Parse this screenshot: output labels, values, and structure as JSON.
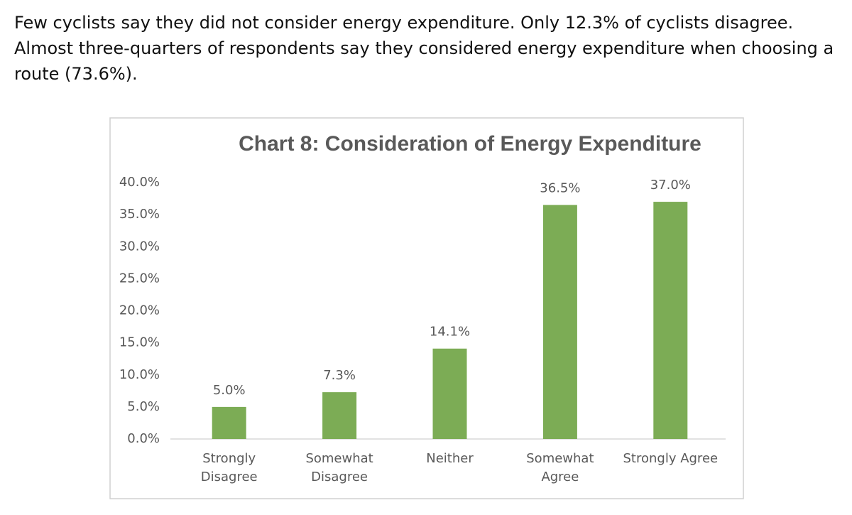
{
  "paragraph": "Few cyclists say they did not consider energy expenditure. Only 12.3% of cyclists disagree. Almost three-quarters of respondents say they considered energy expenditure when choosing a route (73.6%).",
  "chart_data": {
    "type": "bar",
    "title": "Chart 8: Consideration of Energy Expenditure",
    "categories": [
      "Strongly Disagree",
      "Somewhat Disagree",
      "Neither",
      "Somewhat Agree",
      "Strongly Agree"
    ],
    "values": [
      5.0,
      7.3,
      14.1,
      36.5,
      37.0
    ],
    "value_labels": [
      "5.0%",
      "7.3%",
      "14.1%",
      "36.5%",
      "37.0%"
    ],
    "color": "#7cac55",
    "ylim": [
      0,
      40
    ],
    "yticks": [
      {
        "value": 0,
        "label": "0.0%"
      },
      {
        "value": 5,
        "label": "5.0%"
      },
      {
        "value": 10,
        "label": "10.0%"
      },
      {
        "value": 15,
        "label": "15.0%"
      },
      {
        "value": 20,
        "label": "20.0%"
      },
      {
        "value": 25,
        "label": "25.0%"
      },
      {
        "value": 30,
        "label": "30.0%"
      },
      {
        "value": 35,
        "label": "35.0%"
      },
      {
        "value": 40,
        "label": "40.0%"
      }
    ],
    "grid": false
  }
}
